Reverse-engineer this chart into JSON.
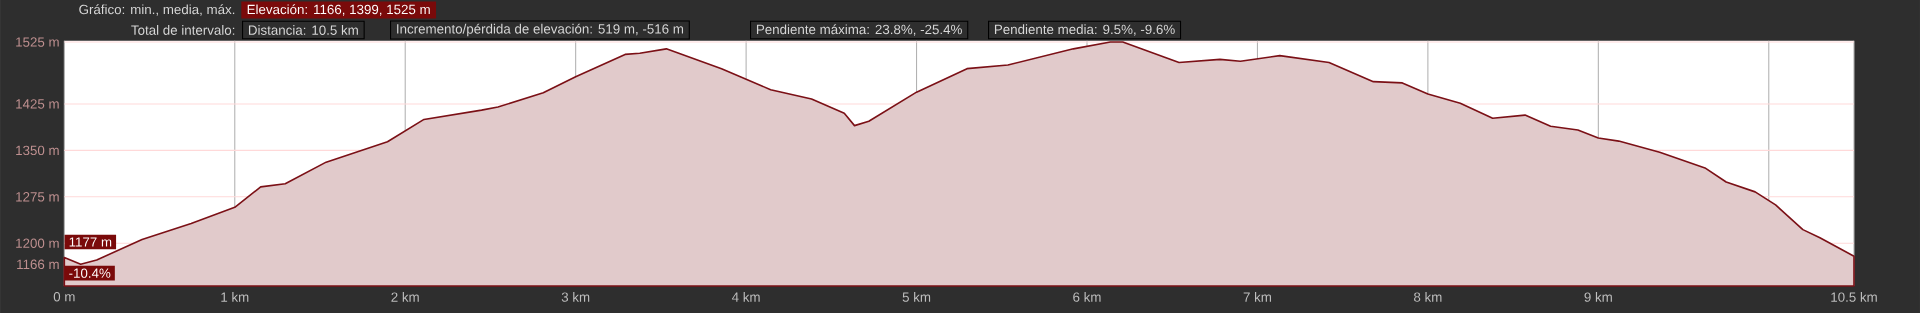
{
  "chart_data": {
    "type": "area",
    "annotations": [
      "Gráfico: min., media, máx.",
      "Elevación: 1166, 1399, 1525 m",
      "Total de intervalo:",
      "Distancia: 10.5 km",
      "Incremento/pérdida de elevación: 519 m, -516 m",
      "Pendiente máxima: 23.8%, -25.4%",
      "Pendiente media: 9.5%, -9.6%",
      {
        "text": "1177 m",
        "x": 0,
        "y": 1177
      },
      {
        "text": "-10.4%",
        "x": 0,
        "y": 1177
      }
    ],
    "series": [
      {
        "color": "#7b1016",
        "x": [
          0,
          0.096,
          0.19,
          0.456,
          0.744,
          1.0,
          1.152,
          1.296,
          1.536,
          1.896,
          2.11,
          2.448,
          2.544,
          2.81,
          3.0,
          3.29,
          3.376,
          3.532,
          3.856,
          4.144,
          4.384,
          4.576,
          4.636,
          4.72,
          5.0,
          5.296,
          5.536,
          5.92,
          6.137,
          6.21,
          6.54,
          6.78,
          6.9,
          7.131,
          7.42,
          7.68,
          7.85,
          8.0,
          8.19,
          8.38,
          8.57,
          8.72,
          8.88,
          9.0,
          9.12,
          9.36,
          9.63,
          9.75,
          9.92,
          10.04,
          10.2,
          10.3,
          10.5
        ],
        "values": [
          1177,
          1166,
          1173,
          1206,
          1232,
          1258,
          1291,
          1296,
          1331,
          1364,
          1400,
          1415,
          1420,
          1443,
          1469,
          1505,
          1507,
          1514,
          1482,
          1448,
          1433,
          1410,
          1390,
          1397,
          1444,
          1482,
          1488,
          1514,
          1525,
          1525,
          1492,
          1497,
          1494,
          1503,
          1492,
          1461,
          1459,
          1441,
          1426,
          1402,
          1407,
          1389,
          1383,
          1370,
          1365,
          1347,
          1321,
          1299,
          1283,
          1262,
          1222,
          1209,
          1179
        ]
      }
    ],
    "xlim": [
      0,
      10.5
    ],
    "xticks": [
      {
        "value": 0,
        "label": "0 m"
      },
      {
        "value": 1,
        "label": "1 km"
      },
      {
        "value": 2,
        "label": "2 km"
      },
      {
        "value": 3,
        "label": "3 km"
      },
      {
        "value": 4,
        "label": "4 km"
      },
      {
        "value": 5,
        "label": "5 km"
      },
      {
        "value": 6,
        "label": "6 km"
      },
      {
        "value": 7,
        "label": "7 km"
      },
      {
        "value": 8,
        "label": "8 km"
      },
      {
        "value": 9,
        "label": "9 km"
      },
      {
        "value": 10,
        "label": null
      },
      {
        "value": 10.5,
        "label": "10.5 km"
      }
    ],
    "ylim": [
      1131,
      1527
    ],
    "yticks": [
      {
        "value": 1166,
        "label": "1166 m"
      },
      {
        "value": 1200,
        "label": "1200 m"
      },
      {
        "value": 1275,
        "label": "1275 m"
      },
      {
        "value": 1350,
        "label": "1350 m"
      },
      {
        "value": 1425,
        "label": "1425 m"
      },
      {
        "value": 1525,
        "label": "1525 m"
      }
    ],
    "grid": true
  }
}
